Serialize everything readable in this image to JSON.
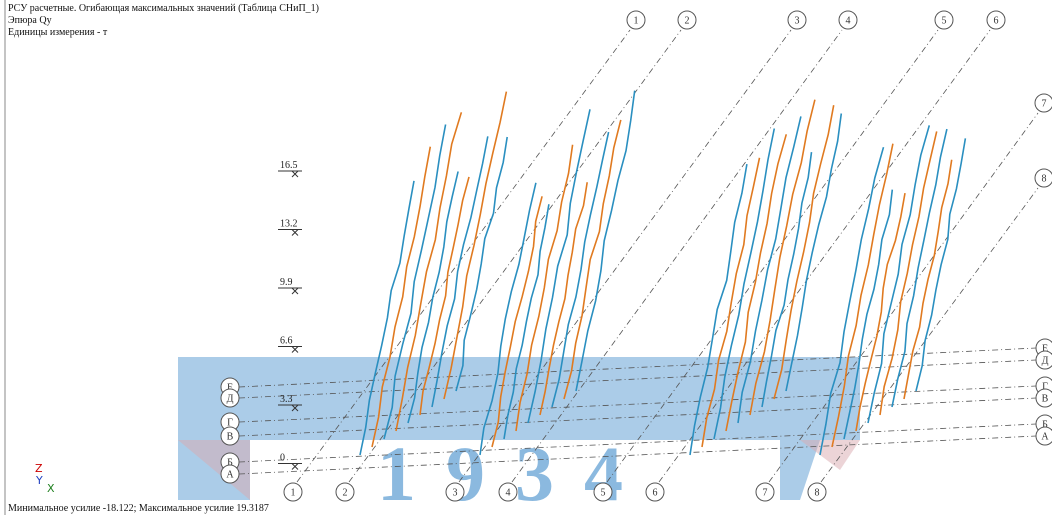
{
  "header": {
    "title": "РСУ расчетные. Огибающая максимальных значений (Таблица СНиП_1)",
    "diagram": "Эпюра Qy",
    "units": "Единицы измерения - т"
  },
  "scale": {
    "labels": [
      16.5,
      13.2,
      9.9,
      6.6,
      3.3,
      0
    ]
  },
  "axes": {
    "top": [
      "1",
      "2",
      "3",
      "4",
      "5",
      "6",
      "7",
      "8"
    ],
    "bottom": [
      "1",
      "2",
      "3",
      "4",
      "5",
      "6",
      "7",
      "8"
    ],
    "left": [
      "Е",
      "Д",
      "Г",
      "В",
      "Б",
      "А"
    ],
    "right": [
      "Е",
      "Д",
      "Г",
      "В",
      "Б",
      "А"
    ]
  },
  "triad": [
    "Z",
    "Y",
    "X"
  ],
  "footer": "Минимальное усилие -18.122; Максимальное усилие 19.3187",
  "watermark": "1934"
}
